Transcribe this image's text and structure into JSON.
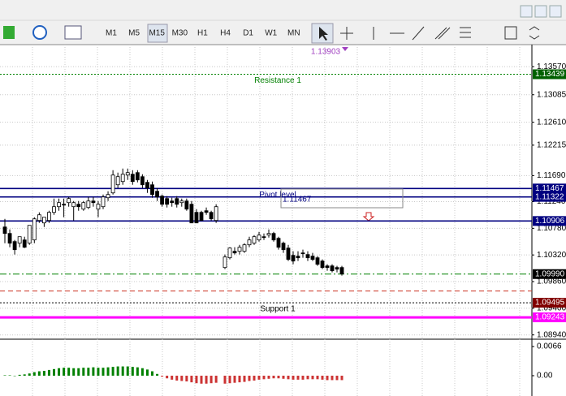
{
  "toolbar": {
    "timeframes": [
      "M1",
      "M5",
      "M15",
      "M30",
      "H1",
      "H4",
      "D1",
      "W1",
      "MN"
    ],
    "active": "M15"
  },
  "chart_data": {
    "type": "candlestick",
    "top_label": {
      "value": 1.13903,
      "label": "1.13903",
      "color": "#a040c0"
    },
    "ylim": [
      1.0888,
      1.1395
    ],
    "yticks": [
      {
        "value": 1.1357,
        "label": "1.13570"
      },
      {
        "value": 1.13085,
        "label": "1.13085"
      },
      {
        "value": 1.1261,
        "label": "1.12610"
      },
      {
        "value": 1.12215,
        "label": "1.12215"
      },
      {
        "value": 1.1169,
        "label": "1.11690"
      },
      {
        "value": 1.1124,
        "label": "1.11240"
      },
      {
        "value": 1.1078,
        "label": "1.10780"
      },
      {
        "value": 1.1032,
        "label": "1.10320"
      },
      {
        "value": 1.0986,
        "label": "1.09860"
      },
      {
        "value": 1.094,
        "label": "1.09400"
      },
      {
        "value": 1.0894,
        "label": "1.08940"
      }
    ],
    "grid": true,
    "levels": [
      {
        "value": 1.13439,
        "label": "1.13439",
        "name": "Resistance 1",
        "color": "#008000",
        "box_color": "#006000",
        "style": "dotted"
      },
      {
        "value": 1.11467,
        "label": "1.11467",
        "name": "Pivot level",
        "color": "#000080",
        "box_color": "#000080",
        "style": "solid"
      },
      {
        "value": 1.11322,
        "label": "1.11322",
        "color": "#000080",
        "box_color": "#000080",
        "style": "solid"
      },
      {
        "value": 1.10906,
        "label": "1.10906",
        "color": "#000080",
        "box_color": "#000080",
        "style": "solid"
      },
      {
        "value": 1.0999,
        "label": "1.09990",
        "color": "#008000",
        "box_color": "#000000",
        "style": "dashdot"
      },
      {
        "value": 1.09697,
        "color": "#cc3322",
        "style": "dashed"
      },
      {
        "value": 1.09495,
        "label": "1.09495",
        "name": "Support 1",
        "color": "#000000",
        "box_color": "#800000",
        "style": "dotted"
      },
      {
        "value": 1.09243,
        "label": "1.09243",
        "color": "#ff00ff",
        "box_color": "#ff00ff",
        "style": "thick"
      }
    ],
    "ohlc": [
      [
        1.10803,
        1.10943,
        1.10523,
        1.10691
      ],
      [
        1.10691,
        1.10761,
        1.10453,
        1.10523
      ],
      [
        1.10551,
        1.10579,
        1.10327,
        1.10411
      ],
      [
        1.10523,
        1.10635,
        1.10453,
        1.10635
      ],
      [
        1.10579,
        1.10635,
        1.10439,
        1.10453
      ],
      [
        1.10523,
        1.10831,
        1.10495,
        1.10831
      ],
      [
        1.10579,
        1.10971,
        1.10523,
        1.10943
      ],
      [
        1.10915,
        1.11055,
        1.10873,
        1.11013
      ],
      [
        1.10873,
        1.10971,
        1.10803,
        1.10971
      ],
      [
        1.10915,
        1.11083,
        1.10873,
        1.11055
      ],
      [
        1.11055,
        1.11293,
        1.11013,
        1.11153
      ],
      [
        1.11153,
        1.11293,
        1.11083,
        1.11223
      ],
      [
        1.11195,
        1.11293,
        1.10971,
        1.11195
      ],
      [
        1.11223,
        1.11321,
        1.11153,
        1.11293
      ],
      [
        1.11153,
        1.11251,
        1.10915,
        1.11223
      ],
      [
        1.11195,
        1.11251,
        1.11083,
        1.11153
      ],
      [
        1.11111,
        1.11251,
        1.11083,
        1.11223
      ],
      [
        1.11139,
        1.11321,
        1.11111,
        1.11251
      ],
      [
        1.11251,
        1.11321,
        1.11153,
        1.11223
      ],
      [
        1.11111,
        1.11251,
        1.10971,
        1.11195
      ],
      [
        1.11153,
        1.11363,
        1.11111,
        1.11321
      ],
      [
        1.11307,
        1.11419,
        1.11251,
        1.11363
      ],
      [
        1.11391,
        1.11783,
        1.11363,
        1.11699
      ],
      [
        1.11531,
        1.11741,
        1.11475,
        1.11671
      ],
      [
        1.11587,
        1.11811,
        1.11531,
        1.11713
      ],
      [
        1.11699,
        1.11811,
        1.11615,
        1.11741
      ],
      [
        1.11713,
        1.11783,
        1.11531,
        1.11587
      ],
      [
        1.11741,
        1.11783,
        1.11573,
        1.11615
      ],
      [
        1.11671,
        1.11713,
        1.11475,
        1.11531
      ],
      [
        1.11573,
        1.11615,
        1.11391,
        1.11475
      ],
      [
        1.11531,
        1.11587,
        1.11307,
        1.11363
      ],
      [
        1.11419,
        1.11475,
        1.11251,
        1.11321
      ],
      [
        1.11335,
        1.11363,
        1.11153,
        1.11195
      ],
      [
        1.11293,
        1.11335,
        1.11139,
        1.11195
      ],
      [
        1.11251,
        1.11307,
        1.11153,
        1.11223
      ],
      [
        1.11293,
        1.11335,
        1.11139,
        1.11195
      ],
      [
        1.11223,
        1.11293,
        1.11153,
        1.11251
      ],
      [
        1.11251,
        1.11293,
        1.11083,
        1.11111
      ],
      [
        1.11195,
        1.11251,
        1.10873,
        1.10873
      ],
      [
        1.11055,
        1.11111,
        1.10873,
        1.10873
      ],
      [
        1.11055,
        1.11083,
        1.10915,
        1.10915
      ],
      [
        1.11083,
        1.11139,
        1.11013,
        1.11055
      ],
      [
        1.11055,
        1.11083,
        1.10915,
        1.10943
      ],
      [
        1.10915,
        1.11195,
        1.10873,
        1.11153
      ],
      [
        1.10103,
        1.10327,
        1.10075,
        1.10285
      ],
      [
        1.10271,
        1.10453,
        1.10243,
        1.10439
      ],
      [
        1.10383,
        1.10453,
        1.10327,
        1.10355
      ],
      [
        1.10383,
        1.10495,
        1.10327,
        1.10453
      ],
      [
        1.10383,
        1.10523,
        1.10355,
        1.10495
      ],
      [
        1.10495,
        1.10635,
        1.10453,
        1.10579
      ],
      [
        1.10523,
        1.10663,
        1.10495,
        1.10635
      ],
      [
        1.10579,
        1.10719,
        1.10551,
        1.10663
      ],
      [
        1.10635,
        1.10691,
        1.10579,
        1.10621
      ],
      [
        1.10663,
        1.10761,
        1.10621,
        1.10691
      ],
      [
        1.10691,
        1.10719,
        1.10551,
        1.10579
      ],
      [
        1.10607,
        1.10635,
        1.10411,
        1.10453
      ],
      [
        1.10523,
        1.10551,
        1.10355,
        1.10411
      ],
      [
        1.10439,
        1.10495,
        1.10215,
        1.10243
      ],
      [
        1.10313,
        1.10383,
        1.10159,
        1.10215
      ],
      [
        1.10299,
        1.10383,
        1.10215,
        1.10271
      ],
      [
        1.10355,
        1.10411,
        1.10271,
        1.10355
      ],
      [
        1.10327,
        1.10383,
        1.10215,
        1.10271
      ],
      [
        1.10299,
        1.10355,
        1.10215,
        1.10243
      ],
      [
        1.10271,
        1.10299,
        1.10131,
        1.10159
      ],
      [
        1.10215,
        1.10243,
        1.10075,
        1.10103
      ],
      [
        1.10131,
        1.10159,
        1.10047,
        1.10103
      ],
      [
        1.10131,
        1.10159,
        1.10019,
        1.10047
      ],
      [
        1.10103,
        1.10131,
        1.10019,
        1.10075
      ],
      [
        1.10103,
        1.10131,
        1.09963,
        1.09991
      ]
    ],
    "indicator": {
      "type": "histogram",
      "ylim": [
        -0.0046,
        0.0079
      ],
      "yticks": [
        {
          "value": 0.0066,
          "label": "0.0066"
        },
        {
          "value": 0,
          "label": "0.00"
        }
      ],
      "up_color": "#008000",
      "down_color": "#cc3333",
      "values": [
        0.0001,
        0.0001,
        0.0,
        0.0002,
        0.0003,
        0.0005,
        0.0008,
        0.001,
        0.0011,
        0.0013,
        0.0015,
        0.0017,
        0.0018,
        0.0018,
        0.0017,
        0.0017,
        0.0018,
        0.0018,
        0.0019,
        0.0018,
        0.0018,
        0.0019,
        0.002,
        0.0021,
        0.0021,
        0.0021,
        0.002,
        0.0019,
        0.0017,
        0.0014,
        0.001,
        0.0004,
        -0.0002,
        -0.0006,
        -0.0009,
        -0.0011,
        -0.0012,
        -0.0013,
        -0.0015,
        -0.0017,
        -0.0018,
        -0.0018,
        -0.0017,
        -0.0016,
        -0.0018,
        -0.0017,
        -0.0016,
        -0.0015,
        -0.0014,
        -0.0012,
        -0.0011,
        -0.0009,
        -0.0008,
        -0.0007,
        -0.0006,
        -0.0006,
        -0.0007,
        -0.0008,
        -0.0009,
        -0.0009,
        -0.0009,
        -0.0008,
        -0.0008,
        -0.0008,
        -0.0009,
        -0.001,
        -0.001,
        -0.001,
        -0.001
      ]
    }
  }
}
